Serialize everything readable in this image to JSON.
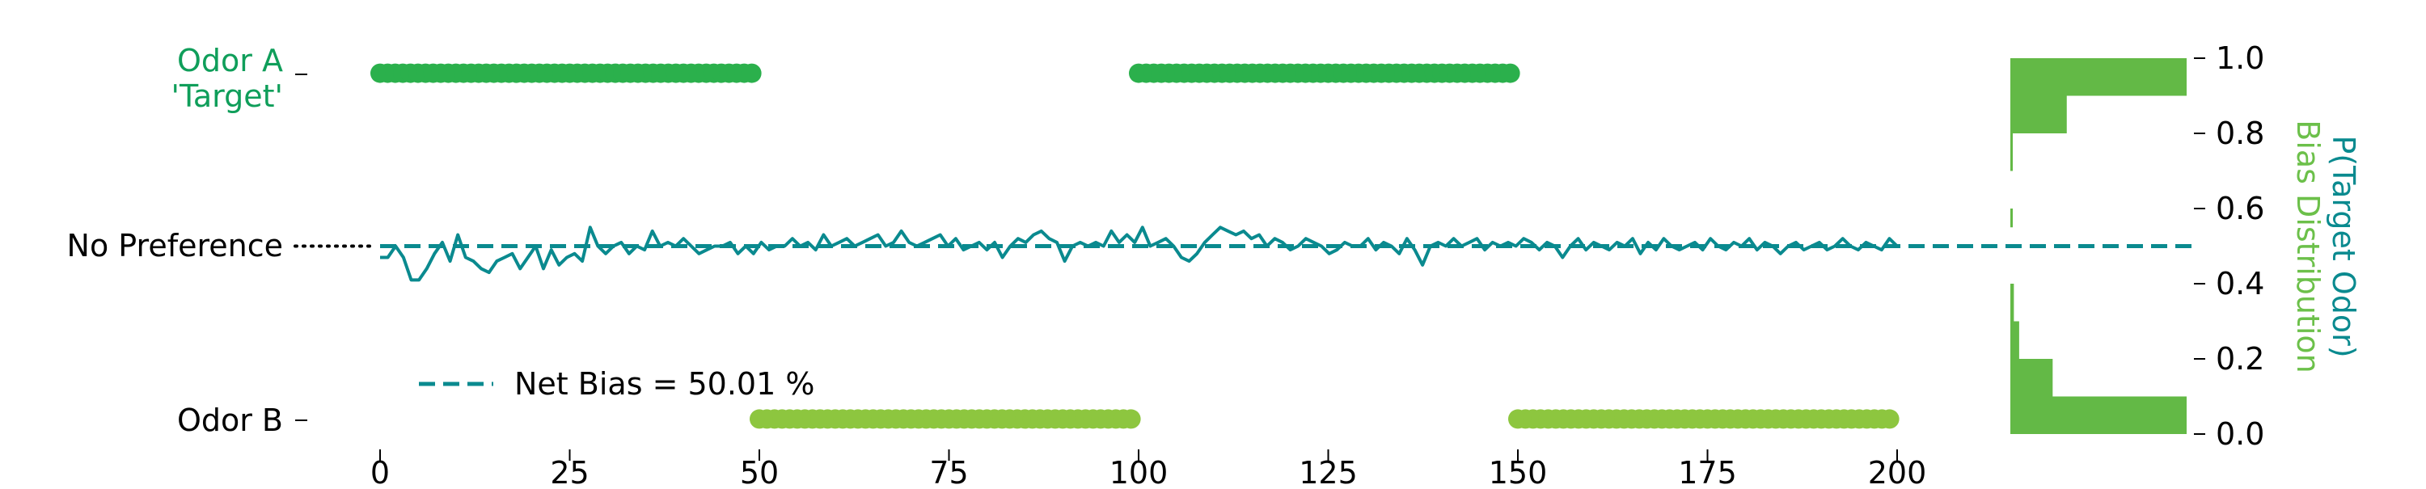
{
  "chart_data": {
    "type": "scatter",
    "left_axis": {
      "tick_labels": [
        {
          "text": "Odor A",
          "color": "#0f9e5a"
        },
        {
          "text": "'Target'",
          "color": "#0f9e5a"
        },
        {
          "text": "No Preference",
          "color": "#000000"
        },
        {
          "text": "Odor B",
          "color": "#000000"
        }
      ]
    },
    "x_axis": {
      "ticks": [
        0,
        25,
        50,
        75,
        100,
        125,
        150,
        175,
        200
      ],
      "tick_labels": [
        "0",
        "25",
        "50",
        "75",
        "100",
        "125",
        "150",
        "175",
        "200"
      ],
      "range": [
        0,
        200
      ]
    },
    "right_axis": {
      "ticks": [
        0.0,
        0.2,
        0.4,
        0.6,
        0.8,
        1.0
      ],
      "tick_labels": [
        "0.0",
        "0.2",
        "0.4",
        "0.6",
        "0.8",
        "1.0"
      ],
      "range": [
        0,
        1
      ],
      "label_line1": "P(Target Odor)",
      "label_line2": "Bias Distribution",
      "label_line1_color": "#0a8a8f",
      "label_line2_color": "#6cc04a"
    },
    "odor_a_blocks": [
      [
        0,
        49
      ],
      [
        100,
        149
      ]
    ],
    "odor_b_blocks": [
      [
        50,
        99
      ],
      [
        150,
        199
      ]
    ],
    "odor_a_color": "#2bb04c",
    "odor_b_color": "#8dc63f",
    "trace_color": "#0a8a8f",
    "net_bias_level": 0.5001,
    "legend": {
      "label": "Net Bias = 50.01 %",
      "position": "lower-left"
    },
    "histogram": {
      "color": "#63b946",
      "bins": [
        {
          "from": 0.0,
          "to": 0.1,
          "count": 100
        },
        {
          "from": 0.1,
          "to": 0.2,
          "count": 24
        },
        {
          "from": 0.2,
          "to": 0.3,
          "count": 5
        },
        {
          "from": 0.3,
          "to": 0.4,
          "count": 2
        },
        {
          "from": 0.55,
          "to": 0.6,
          "count": 1
        },
        {
          "from": 0.7,
          "to": 0.8,
          "count": 1
        },
        {
          "from": 0.8,
          "to": 0.9,
          "count": 32
        },
        {
          "from": 0.9,
          "to": 1.0,
          "count": 100
        }
      ]
    },
    "trace": [
      0.47,
      0.47,
      0.5,
      0.47,
      0.41,
      0.41,
      0.44,
      0.48,
      0.51,
      0.46,
      0.53,
      0.47,
      0.46,
      0.44,
      0.43,
      0.46,
      0.47,
      0.48,
      0.44,
      0.47,
      0.5,
      0.44,
      0.49,
      0.45,
      0.47,
      0.48,
      0.46,
      0.55,
      0.5,
      0.48,
      0.5,
      0.51,
      0.48,
      0.5,
      0.49,
      0.54,
      0.5,
      0.51,
      0.5,
      0.52,
      0.5,
      0.48,
      0.49,
      0.5,
      0.5,
      0.51,
      0.48,
      0.5,
      0.48,
      0.51,
      0.49,
      0.5,
      0.5,
      0.52,
      0.5,
      0.51,
      0.49,
      0.53,
      0.5,
      0.51,
      0.52,
      0.5,
      0.51,
      0.52,
      0.53,
      0.5,
      0.51,
      0.54,
      0.51,
      0.5,
      0.51,
      0.52,
      0.53,
      0.5,
      0.52,
      0.49,
      0.5,
      0.51,
      0.49,
      0.51,
      0.47,
      0.5,
      0.52,
      0.51,
      0.53,
      0.54,
      0.52,
      0.51,
      0.46,
      0.5,
      0.51,
      0.5,
      0.51,
      0.5,
      0.54,
      0.51,
      0.53,
      0.51,
      0.55,
      0.5,
      0.51,
      0.52,
      0.5,
      0.47,
      0.46,
      0.48,
      0.51,
      0.53,
      0.55,
      0.54,
      0.53,
      0.54,
      0.52,
      0.53,
      0.5,
      0.52,
      0.51,
      0.49,
      0.5,
      0.52,
      0.51,
      0.5,
      0.48,
      0.49,
      0.51,
      0.5,
      0.5,
      0.52,
      0.49,
      0.51,
      0.5,
      0.48,
      0.52,
      0.49,
      0.45,
      0.5,
      0.51,
      0.5,
      0.52,
      0.5,
      0.51,
      0.52,
      0.49,
      0.51,
      0.5,
      0.51,
      0.5,
      0.52,
      0.51,
      0.49,
      0.51,
      0.5,
      0.47,
      0.5,
      0.52,
      0.49,
      0.51,
      0.5,
      0.49,
      0.51,
      0.5,
      0.52,
      0.48,
      0.51,
      0.49,
      0.52,
      0.5,
      0.49,
      0.5,
      0.51,
      0.49,
      0.52,
      0.5,
      0.49,
      0.51,
      0.5,
      0.52,
      0.49,
      0.51,
      0.5,
      0.48,
      0.5,
      0.51,
      0.49,
      0.5,
      0.51,
      0.49,
      0.5,
      0.52,
      0.5,
      0.49,
      0.51,
      0.5,
      0.49,
      0.52,
      0.5
    ]
  }
}
